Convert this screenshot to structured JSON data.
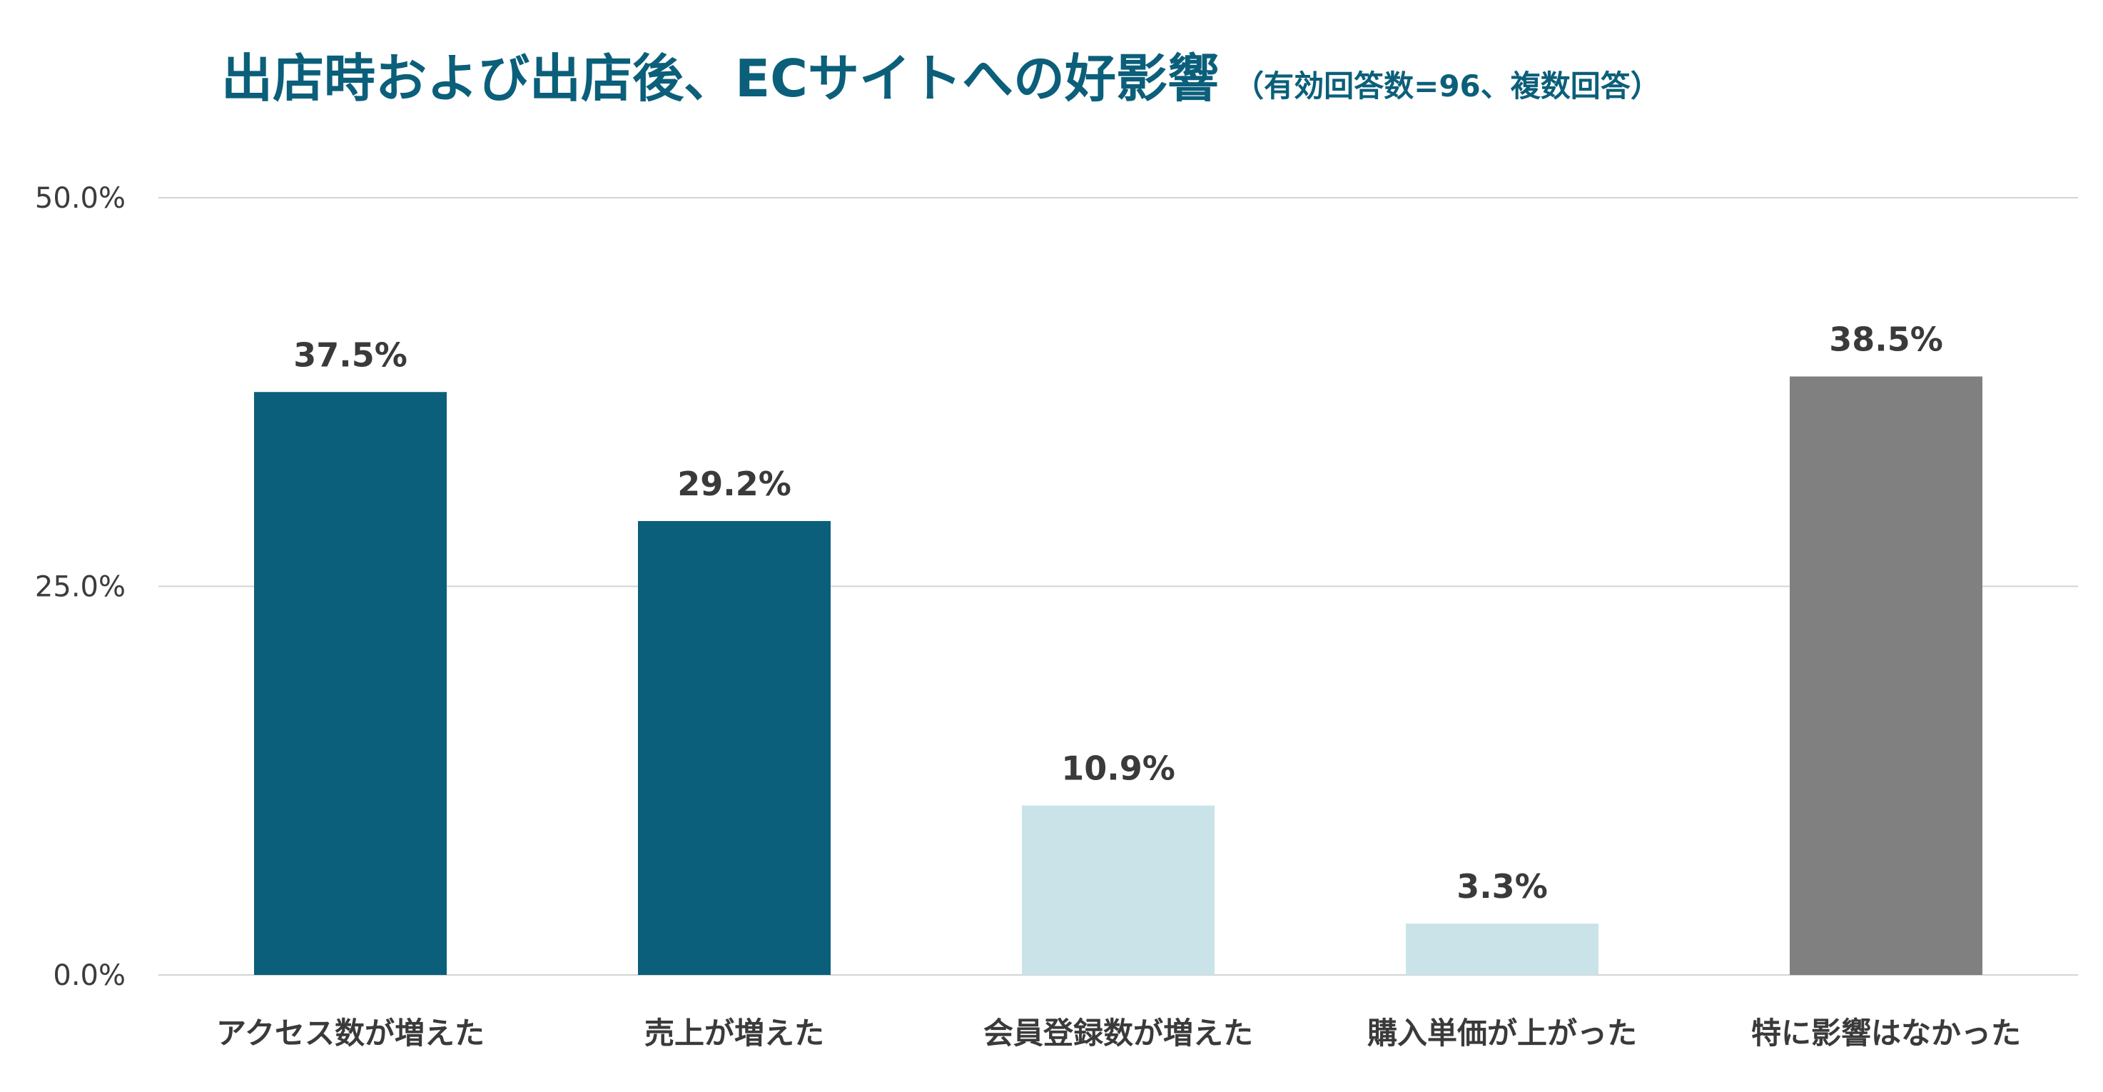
{
  "chart_data": {
    "type": "bar",
    "title": "出店時および出店後、ECサイトへの好影響",
    "subtitle": "（有効回答数=96、複数回答）",
    "xlabel": "",
    "ylabel": "",
    "ylim": [
      0,
      50
    ],
    "y_ticks": [
      0,
      25,
      50
    ],
    "y_tick_labels": [
      "0.0%",
      "25.0%",
      "50.0%"
    ],
    "grid": true,
    "categories": [
      "アクセス数が増えた",
      "売上が増えた",
      "会員登録数が増えた",
      "購入単価が上がった",
      "特に影響はなかった"
    ],
    "values": [
      37.5,
      29.2,
      10.9,
      3.3,
      38.5
    ],
    "value_labels": [
      "37.5%",
      "29.2%",
      "10.9%",
      "3.3%",
      "38.5%"
    ],
    "bar_colors": [
      "#0b5f7a",
      "#0b5f7a",
      "#cae3e8",
      "#cae3e8",
      "#808080"
    ],
    "title_color": "#0b5f7a",
    "gridline_color": "#d4d4d4"
  }
}
